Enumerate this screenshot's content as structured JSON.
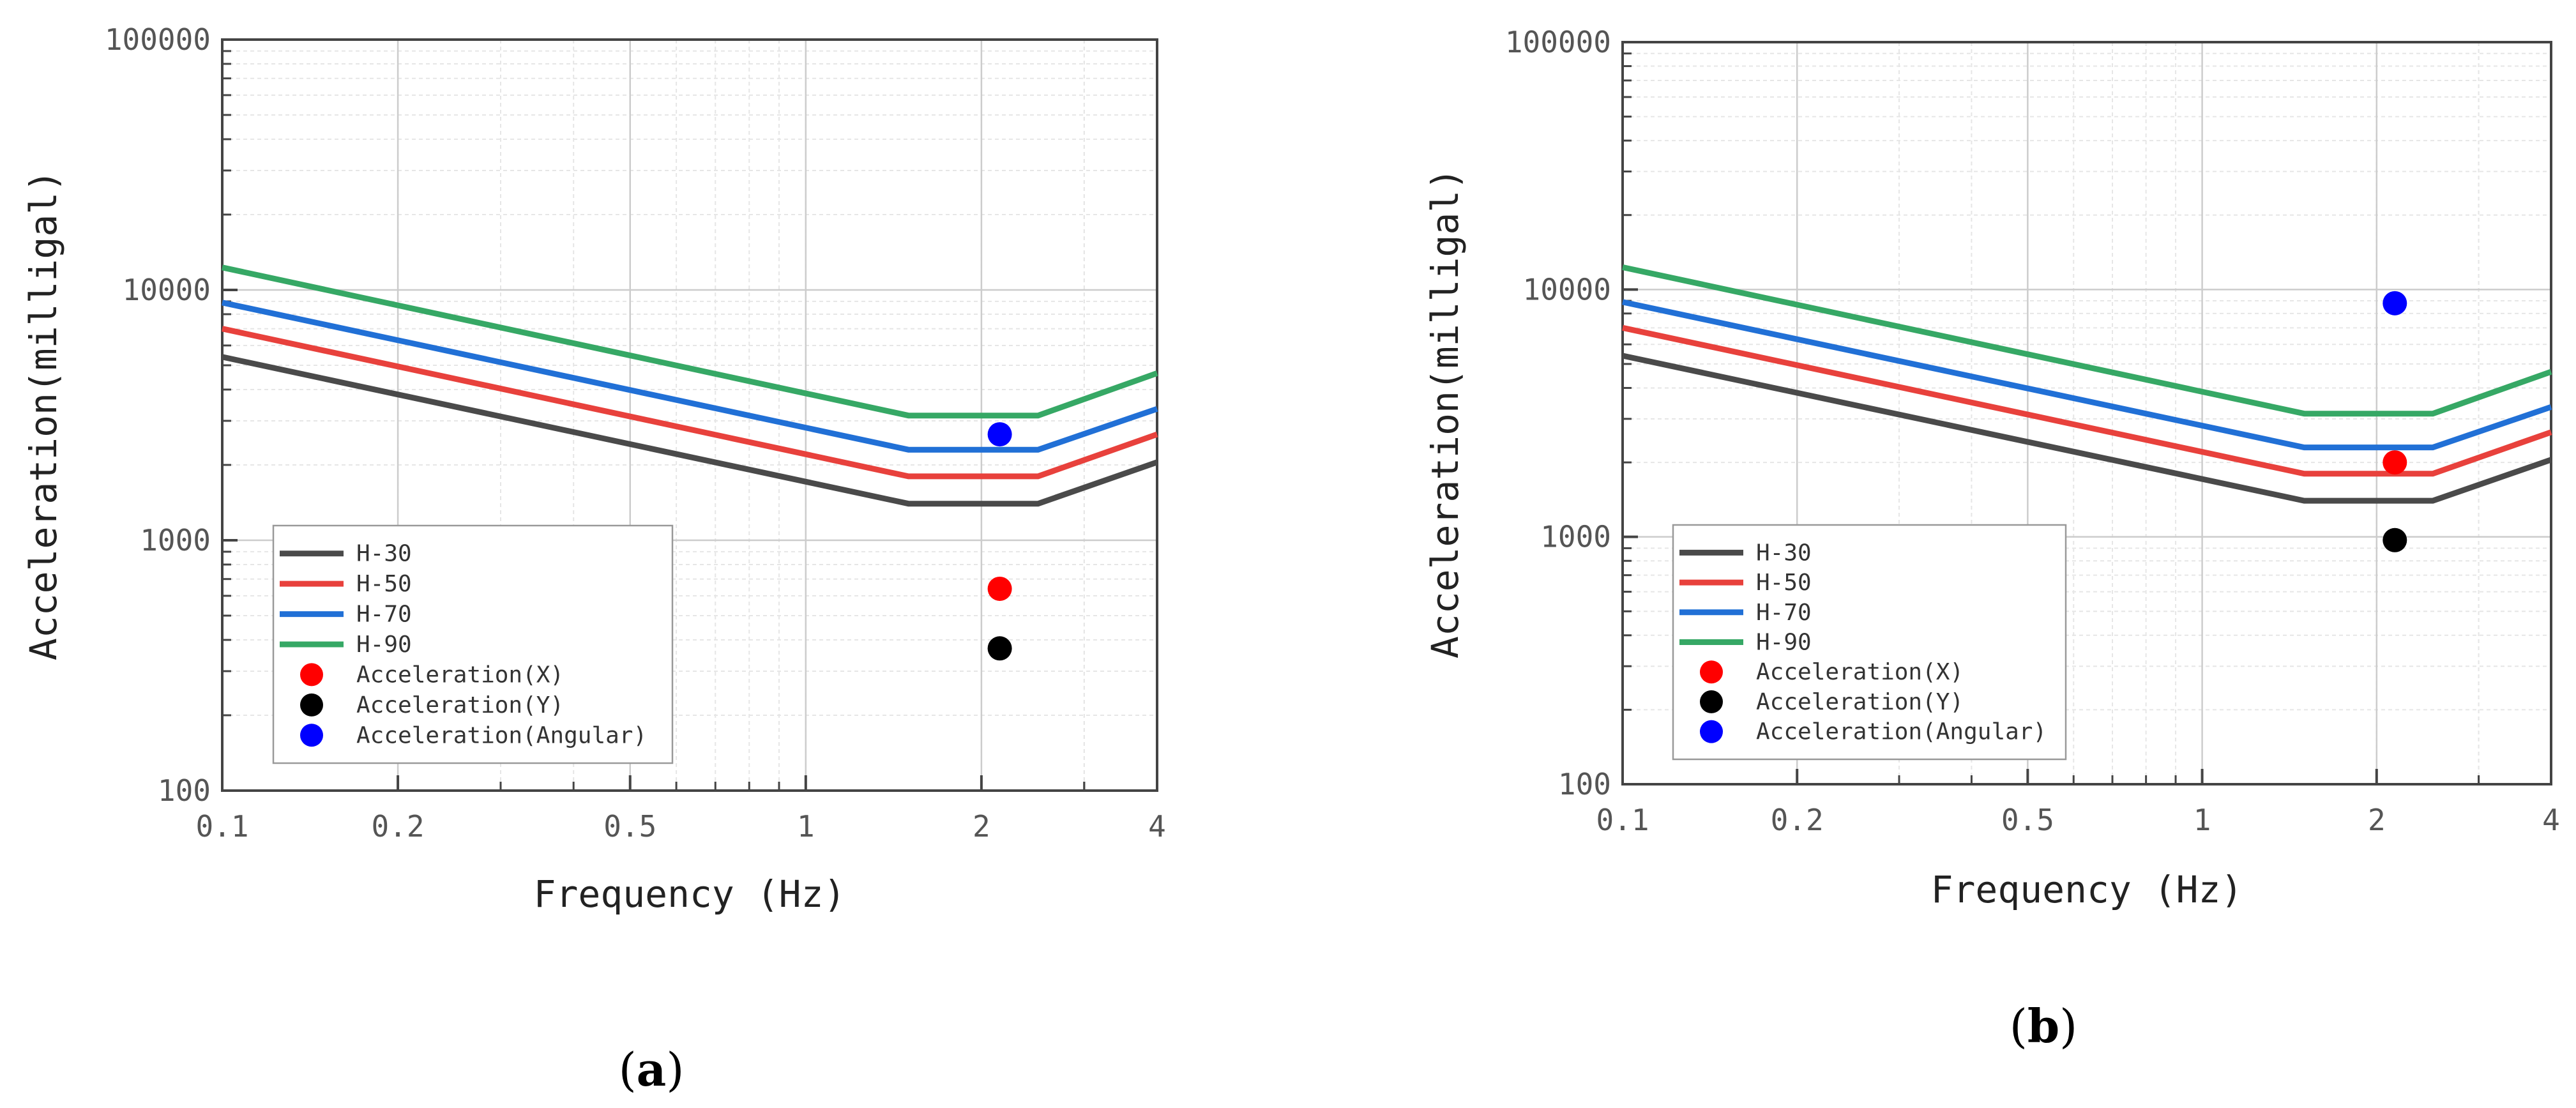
{
  "chart_data": [
    {
      "type": "line",
      "panel_label": "a",
      "xlabel": "Frequency (Hz)",
      "ylabel": "Acceleration(milligal)",
      "xscale": "log",
      "yscale": "log",
      "xlim": [
        0.1,
        4
      ],
      "ylim": [
        100,
        100000
      ],
      "xticks": [
        0.1,
        0.2,
        0.5,
        1,
        2,
        4
      ],
      "xtick_labels": [
        "0.1",
        "0.2",
        "0.5",
        "1",
        "2",
        "4"
      ],
      "yticks": [
        100,
        1000,
        10000,
        100000
      ],
      "ytick_labels": [
        "100",
        "1000",
        "10000",
        "100000"
      ],
      "grid": true,
      "legend_position": "lower-left",
      "series": [
        {
          "name": "H-30",
          "color": "#4a4a4a",
          "x": [
            0.1,
            1.5,
            2.5,
            4
          ],
          "y": [
            5400,
            1400,
            1400,
            2050
          ]
        },
        {
          "name": "H-50",
          "color": "#e8413c",
          "x": [
            0.1,
            1.5,
            2.5,
            4
          ],
          "y": [
            7000,
            1800,
            1800,
            2650
          ]
        },
        {
          "name": "H-70",
          "color": "#2170d6",
          "x": [
            0.1,
            1.5,
            2.5,
            4
          ],
          "y": [
            8900,
            2300,
            2300,
            3350
          ]
        },
        {
          "name": "H-90",
          "color": "#36a865",
          "x": [
            0.1,
            1.5,
            2.5,
            4
          ],
          "y": [
            12300,
            3150,
            3150,
            4650
          ]
        }
      ],
      "points": [
        {
          "name": "Acceleration(X)",
          "color": "#ff0000",
          "x": 2.15,
          "y": 640
        },
        {
          "name": "Acceleration(Y)",
          "color": "#000000",
          "x": 2.15,
          "y": 370
        },
        {
          "name": "Acceleration(Angular)",
          "color": "#0000ff",
          "x": 2.15,
          "y": 2650
        }
      ]
    },
    {
      "type": "line",
      "panel_label": "b",
      "xlabel": "Frequency (Hz)",
      "ylabel": "Acceleration(milligal)",
      "xscale": "log",
      "yscale": "log",
      "xlim": [
        0.1,
        4
      ],
      "ylim": [
        100,
        100000
      ],
      "xticks": [
        0.1,
        0.2,
        0.5,
        1,
        2,
        4
      ],
      "xtick_labels": [
        "0.1",
        "0.2",
        "0.5",
        "1",
        "2",
        "4"
      ],
      "yticks": [
        100,
        1000,
        10000,
        100000
      ],
      "ytick_labels": [
        "100",
        "1000",
        "10000",
        "100000"
      ],
      "grid": true,
      "legend_position": "lower-left",
      "series": [
        {
          "name": "H-30",
          "color": "#4a4a4a",
          "x": [
            0.1,
            1.5,
            2.5,
            4
          ],
          "y": [
            5400,
            1400,
            1400,
            2050
          ]
        },
        {
          "name": "H-50",
          "color": "#e8413c",
          "x": [
            0.1,
            1.5,
            2.5,
            4
          ],
          "y": [
            7000,
            1800,
            1800,
            2650
          ]
        },
        {
          "name": "H-70",
          "color": "#2170d6",
          "x": [
            0.1,
            1.5,
            2.5,
            4
          ],
          "y": [
            8900,
            2300,
            2300,
            3350
          ]
        },
        {
          "name": "H-90",
          "color": "#36a865",
          "x": [
            0.1,
            1.5,
            2.5,
            4
          ],
          "y": [
            12300,
            3150,
            3150,
            4650
          ]
        }
      ],
      "points": [
        {
          "name": "Acceleration(X)",
          "color": "#ff0000",
          "x": 2.15,
          "y": 2000
        },
        {
          "name": "Acceleration(Y)",
          "color": "#000000",
          "x": 2.15,
          "y": 970
        },
        {
          "name": "Acceleration(Angular)",
          "color": "#0000ff",
          "x": 2.15,
          "y": 8800
        }
      ]
    }
  ]
}
